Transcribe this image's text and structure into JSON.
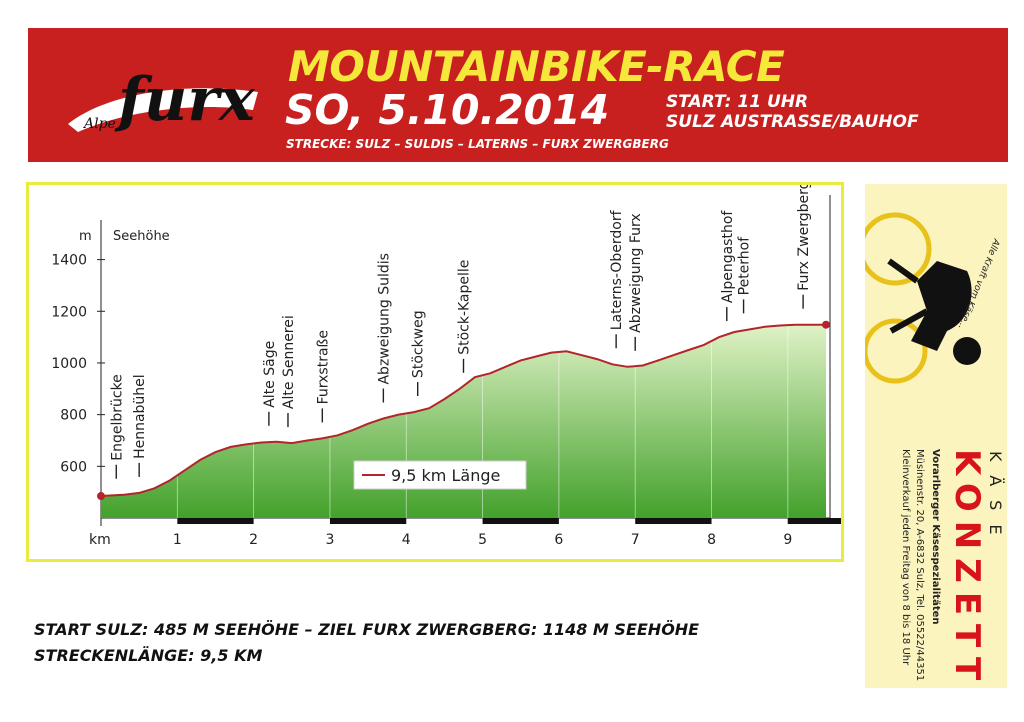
{
  "header": {
    "logo_small": "Alpe",
    "logo_main": "furx",
    "title": "MOUNTAINBIKE-RACE",
    "date": "SO, 5.10.2014",
    "start_line1": "START: 11 UHR",
    "start_line2": "SULZ AUSTRASSE/BAUHOF",
    "route": "STRECKE: SULZ – SULDIS – LATERNS – FURX ZWERGBERG"
  },
  "footer": {
    "line1": "START SULZ: 485 M SEEHÖHE – ZIEL FURX ZWERGBERG: 1148 M SEEHÖHE",
    "line2": "STRECKENLÄNGE: 9,5 KM"
  },
  "ad": {
    "slogan": "Alle Kraft vom Käse...",
    "kase": "KÄSE",
    "brand": "KONZETT",
    "subtitle": "Vorarlberger Käsespezialitäten",
    "address": "Müsinenstr. 20, A-6832 Sulz, Tel. 05522/44351",
    "opening": "Kleinverkauf jeden Freitag von 8 bis 18 Uhr"
  },
  "colors": {
    "banner": "#c8201f",
    "title": "#f5e83a",
    "frame": "#e7ec3e",
    "profile_line": "#b3242b",
    "fill_top": "#dff2c6",
    "fill_bottom": "#43a12b"
  },
  "chart_data": {
    "type": "area",
    "ylabel": "Seehöhe",
    "yunit": "m",
    "xunit": "km",
    "yticks": [
      600,
      800,
      1000,
      1200,
      1400
    ],
    "xticks": [
      1,
      2,
      3,
      4,
      5,
      6,
      7,
      8,
      9
    ],
    "ylim": [
      400,
      1650
    ],
    "xlim": [
      0,
      9.5
    ],
    "legend": "9,5 km Länge",
    "series": [
      {
        "x": [
          0,
          0.3,
          0.5,
          0.7,
          0.9,
          1.1,
          1.3,
          1.5,
          1.7,
          1.9,
          2.1,
          2.3,
          2.5,
          2.7,
          2.9,
          3.1,
          3.3,
          3.5,
          3.7,
          3.9,
          4.1,
          4.3,
          4.5,
          4.7,
          4.9,
          5.1,
          5.3,
          5.5,
          5.7,
          5.9,
          6.1,
          6.3,
          6.5,
          6.7,
          6.9,
          7.1,
          7.3,
          7.5,
          7.7,
          7.9,
          8.1,
          8.3,
          8.5,
          8.7,
          8.9,
          9.1,
          9.3,
          9.5
        ],
        "y": [
          485,
          490,
          497,
          515,
          545,
          585,
          625,
          655,
          675,
          685,
          692,
          695,
          690,
          700,
          708,
          720,
          740,
          765,
          785,
          800,
          810,
          825,
          860,
          900,
          945,
          960,
          985,
          1010,
          1025,
          1040,
          1045,
          1030,
          1015,
          995,
          985,
          990,
          1010,
          1030,
          1050,
          1070,
          1100,
          1120,
          1130,
          1140,
          1145,
          1148,
          1148,
          1148
        ]
      }
    ],
    "waypoints": [
      {
        "label": "Engelbrücke",
        "km": 0.2
      },
      {
        "label": "Hennabühel",
        "km": 0.5
      },
      {
        "label": "Alte Säge",
        "km": 2.2
      },
      {
        "label": "Alte Sennerei",
        "km": 2.45
      },
      {
        "label": "Furxstraße",
        "km": 2.9
      },
      {
        "label": "Abzweigung Suldis",
        "km": 3.7
      },
      {
        "label": "Stöckweg",
        "km": 4.15
      },
      {
        "label": "Stöck-Kapelle",
        "km": 4.75
      },
      {
        "label": "Laterns-Oberdorf",
        "km": 6.75
      },
      {
        "label": "Abzweigung Furx",
        "km": 7.0
      },
      {
        "label": "Alpengasthof",
        "km": 8.2
      },
      {
        "label": "Peterhof",
        "km": 8.42
      },
      {
        "label": "Furx Zwergberg",
        "km": 9.2
      }
    ]
  }
}
